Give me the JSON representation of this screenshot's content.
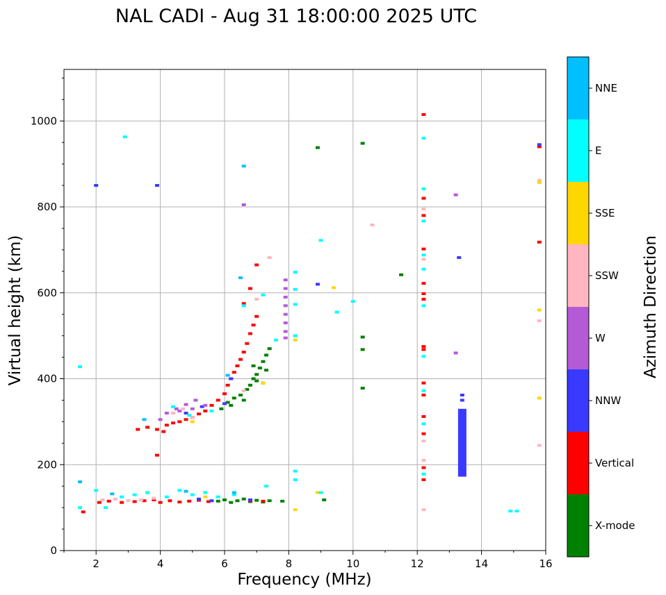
{
  "chart_data": {
    "type": "scatter",
    "title": "NAL CADI - Aug 31 18:00:00 2025 UTC",
    "xlabel": "Frequency (MHz)",
    "ylabel": "Virtual height (km)",
    "xlim": [
      1,
      16
    ],
    "ylim": [
      0,
      1120
    ],
    "xticks": [
      2,
      4,
      6,
      8,
      10,
      12,
      14,
      16
    ],
    "yticks": [
      0,
      200,
      400,
      600,
      800,
      1000
    ],
    "grid": true,
    "colorbar": {
      "label": "Azimuth Direction",
      "categories": [
        "X-mode",
        "Vertical",
        "NNW",
        "W",
        "SSW",
        "SSE",
        "E",
        "NNE"
      ],
      "colors": [
        "#008000",
        "#ff0000",
        "#3a3aff",
        "#b45ad6",
        "#ffb6c1",
        "#ffd700",
        "#00ffff",
        "#00bfff"
      ]
    },
    "series": [
      {
        "name": "X-mode",
        "points": [
          [
            5.8,
            115
          ],
          [
            6.0,
            118
          ],
          [
            6.2,
            112
          ],
          [
            6.4,
            116
          ],
          [
            6.6,
            120
          ],
          [
            6.8,
            114
          ],
          [
            7.0,
            117
          ],
          [
            7.2,
            113
          ],
          [
            7.4,
            116
          ],
          [
            7.8,
            115
          ],
          [
            5.9,
            330
          ],
          [
            6.1,
            345
          ],
          [
            6.3,
            355
          ],
          [
            6.5,
            362
          ],
          [
            6.7,
            375
          ],
          [
            6.8,
            385
          ],
          [
            6.9,
            400
          ],
          [
            7.0,
            410
          ],
          [
            7.1,
            425
          ],
          [
            7.2,
            440
          ],
          [
            7.3,
            455
          ],
          [
            7.4,
            470
          ],
          [
            7.0,
            395
          ],
          [
            6.6,
            350
          ],
          [
            6.2,
            338
          ],
          [
            7.3,
            420
          ],
          [
            6.9,
            430
          ],
          [
            7.2,
            390
          ],
          [
            8.9,
            938
          ],
          [
            9.1,
            118
          ],
          [
            10.3,
            948
          ],
          [
            10.3,
            497
          ],
          [
            10.3,
            468
          ],
          [
            10.3,
            378
          ],
          [
            11.5,
            642
          ]
        ]
      },
      {
        "name": "Vertical",
        "points": [
          [
            1.6,
            90
          ],
          [
            2.1,
            112
          ],
          [
            2.4,
            115
          ],
          [
            2.8,
            112
          ],
          [
            3.2,
            114
          ],
          [
            3.5,
            116
          ],
          [
            3.8,
            118
          ],
          [
            4.0,
            112
          ],
          [
            4.3,
            116
          ],
          [
            4.6,
            113
          ],
          [
            4.9,
            115
          ],
          [
            5.2,
            117
          ],
          [
            5.5,
            114
          ],
          [
            6.8,
            116
          ],
          [
            7.2,
            115
          ],
          [
            3.3,
            282
          ],
          [
            3.6,
            287
          ],
          [
            3.9,
            282
          ],
          [
            4.1,
            277
          ],
          [
            4.2,
            292
          ],
          [
            4.4,
            297
          ],
          [
            4.6,
            300
          ],
          [
            4.8,
            305
          ],
          [
            5.0,
            310
          ],
          [
            5.2,
            318
          ],
          [
            5.4,
            325
          ],
          [
            5.6,
            338
          ],
          [
            5.8,
            350
          ],
          [
            6.0,
            365
          ],
          [
            6.1,
            385
          ],
          [
            6.2,
            400
          ],
          [
            6.3,
            415
          ],
          [
            6.4,
            430
          ],
          [
            6.5,
            445
          ],
          [
            6.6,
            462
          ],
          [
            6.7,
            482
          ],
          [
            6.8,
            505
          ],
          [
            6.9,
            525
          ],
          [
            7.0,
            545
          ],
          [
            6.6,
            575
          ],
          [
            6.8,
            610
          ],
          [
            7.0,
            665
          ],
          [
            3.9,
            222
          ],
          [
            12.2,
            1015
          ],
          [
            12.2,
            820
          ],
          [
            12.2,
            780
          ],
          [
            12.2,
            702
          ],
          [
            12.2,
            622
          ],
          [
            12.2,
            598
          ],
          [
            12.2,
            585
          ],
          [
            12.2,
            475
          ],
          [
            12.2,
            468
          ],
          [
            12.2,
            390
          ],
          [
            12.2,
            362
          ],
          [
            12.2,
            312
          ],
          [
            12.2,
            272
          ],
          [
            12.2,
            193
          ],
          [
            12.2,
            165
          ],
          [
            15.8,
            940
          ],
          [
            15.8,
            718
          ]
        ]
      },
      {
        "name": "NNW",
        "points": [
          [
            2.0,
            850
          ],
          [
            3.9,
            850
          ],
          [
            5.2,
            120
          ],
          [
            5.6,
            116
          ],
          [
            6.2,
            400
          ],
          [
            6.8,
            118
          ],
          [
            8.9,
            620
          ],
          [
            13.3,
            682
          ],
          [
            4.8,
            320
          ],
          [
            5.3,
            335
          ],
          [
            6.0,
            342
          ],
          [
            13.4,
            362
          ],
          [
            13.4,
            350
          ],
          [
            15.8,
            945
          ]
        ]
      },
      {
        "name": "W",
        "points": [
          [
            4.2,
            320
          ],
          [
            4.5,
            330
          ],
          [
            4.8,
            340
          ],
          [
            5.1,
            350
          ],
          [
            5.4,
            338
          ],
          [
            4.0,
            305
          ],
          [
            4.6,
            325
          ],
          [
            5.0,
            330
          ],
          [
            6.6,
            805
          ],
          [
            7.9,
            630
          ],
          [
            7.9,
            610
          ],
          [
            7.9,
            590
          ],
          [
            7.9,
            570
          ],
          [
            7.9,
            550
          ],
          [
            7.9,
            530
          ],
          [
            7.9,
            510
          ],
          [
            7.9,
            495
          ],
          [
            13.2,
            460
          ],
          [
            13.2,
            828
          ]
        ]
      },
      {
        "name": "SSW",
        "points": [
          [
            2.2,
            118
          ],
          [
            2.6,
            120
          ],
          [
            3.0,
            116
          ],
          [
            3.4,
            118
          ],
          [
            3.8,
            122
          ],
          [
            4.4,
            320
          ],
          [
            4.7,
            330
          ],
          [
            5.0,
            310
          ],
          [
            6.6,
            372
          ],
          [
            7.0,
            585
          ],
          [
            7.4,
            682
          ],
          [
            10.6,
            758
          ],
          [
            12.2,
            795
          ],
          [
            12.2,
            678
          ],
          [
            12.2,
            255
          ],
          [
            12.2,
            210
          ],
          [
            12.2,
            95
          ],
          [
            15.8,
            862
          ],
          [
            15.8,
            535
          ],
          [
            15.8,
            245
          ]
        ]
      },
      {
        "name": "SSE",
        "points": [
          [
            5.4,
            125
          ],
          [
            5.0,
            300
          ],
          [
            7.2,
            390
          ],
          [
            8.2,
            95
          ],
          [
            8.2,
            490
          ],
          [
            9.4,
            612
          ],
          [
            8.9,
            135
          ],
          [
            15.8,
            857
          ],
          [
            15.8,
            560
          ],
          [
            15.8,
            355
          ]
        ]
      },
      {
        "name": "E",
        "points": [
          [
            1.5,
            428
          ],
          [
            2.9,
            963
          ],
          [
            1.5,
            100
          ],
          [
            2.0,
            140
          ],
          [
            2.3,
            100
          ],
          [
            2.8,
            125
          ],
          [
            3.2,
            130
          ],
          [
            3.6,
            135
          ],
          [
            4.2,
            125
          ],
          [
            4.6,
            140
          ],
          [
            5.0,
            130
          ],
          [
            5.4,
            135
          ],
          [
            5.8,
            125
          ],
          [
            6.3,
            130
          ],
          [
            7.3,
            150
          ],
          [
            4.4,
            335
          ],
          [
            4.9,
            315
          ],
          [
            5.6,
            325
          ],
          [
            6.6,
            570
          ],
          [
            7.2,
            595
          ],
          [
            7.6,
            490
          ],
          [
            8.2,
            648
          ],
          [
            8.2,
            608
          ],
          [
            8.2,
            573
          ],
          [
            8.2,
            500
          ],
          [
            8.2,
            185
          ],
          [
            8.2,
            165
          ],
          [
            9.0,
            722
          ],
          [
            9.0,
            135
          ],
          [
            9.5,
            555
          ],
          [
            10.0,
            580
          ],
          [
            12.2,
            960
          ],
          [
            12.2,
            842
          ],
          [
            12.2,
            767
          ],
          [
            12.2,
            688
          ],
          [
            12.2,
            655
          ],
          [
            12.2,
            570
          ],
          [
            12.2,
            452
          ],
          [
            12.2,
            372
          ],
          [
            12.2,
            295
          ],
          [
            12.2,
            178
          ],
          [
            14.9,
            92
          ],
          [
            15.1,
            92
          ]
        ]
      },
      {
        "name": "NNE",
        "points": [
          [
            1.5,
            160
          ],
          [
            2.5,
            132
          ],
          [
            4.8,
            138
          ],
          [
            6.6,
            895
          ],
          [
            6.5,
            635
          ],
          [
            6.1,
            408
          ],
          [
            3.5,
            305
          ],
          [
            6.3,
            135
          ]
        ]
      }
    ],
    "nnw_bar": {
      "x": 13.4,
      "y_range": [
        172,
        330
      ]
    }
  }
}
